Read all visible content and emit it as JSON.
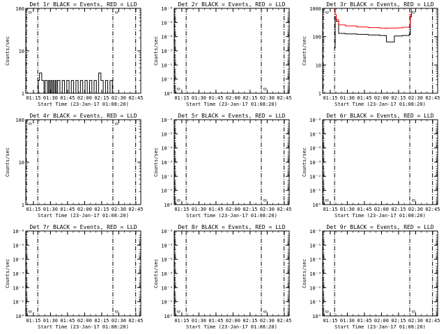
{
  "colors": {
    "events": "#000000",
    "lld": "#ff0000",
    "background": "#ffffff"
  },
  "shared": {
    "xlabel": "Start Time (23-Jan-17 01:08:20)",
    "ylabel": "Counts/sec",
    "x_ticks": [
      "01:15",
      "01:30",
      "01:45",
      "02:00",
      "02:15",
      "02:30",
      "02:45"
    ],
    "x_tick_minutes": [
      6.67,
      21.67,
      36.67,
      51.67,
      66.67,
      81.67,
      96.67
    ],
    "xlim_minutes": [
      0,
      101
    ],
    "marker_lines_minutes": [
      0.5,
      10.5,
      76.5,
      96.5
    ],
    "marker_text": "D",
    "marker_text_minutes": [
      0.6,
      76.6
    ]
  },
  "chart_data": [
    {
      "type": "line",
      "title": "Det 1r BLACK = Events, RED = LLD",
      "ylabel": "Counts/sec",
      "xlabel": "Start Time (23-Jan-17 01:08:20)",
      "scale": "log",
      "ylim": [
        1,
        100
      ],
      "y_ticks": [
        "1",
        "10",
        "100"
      ],
      "y_tick_values": [
        1,
        10,
        100
      ],
      "series": [
        {
          "color": "events",
          "x": [
            10,
            11,
            12,
            13,
            14,
            15,
            16,
            17,
            18,
            19,
            20,
            21,
            22,
            23,
            24,
            25,
            26,
            27,
            28,
            30,
            32,
            34,
            36,
            38,
            40,
            42,
            44,
            46,
            48,
            50,
            52,
            54,
            56,
            58,
            60,
            62,
            64,
            66,
            68,
            70,
            72,
            74,
            76
          ],
          "y": [
            1,
            2,
            3,
            3,
            2,
            2,
            1,
            2,
            2,
            1,
            2,
            1,
            2,
            1,
            2,
            1,
            2,
            1,
            2,
            1,
            2,
            1,
            2,
            1,
            2,
            1,
            2,
            1,
            2,
            1,
            2,
            1,
            2,
            1,
            2,
            1,
            3,
            2,
            1,
            2,
            1,
            2,
            1
          ]
        }
      ]
    },
    {
      "type": "line",
      "title": "Det 2r BLACK = Events, RED = LLD",
      "ylabel": "Counts/sec",
      "xlabel": "Start Time (23-Jan-17 01:08:20)",
      "scale": "log",
      "ylim": [
        1,
        1e-06
      ],
      "y_ticks": [
        "10⁻⁶",
        "10⁻⁵",
        "10⁻⁴",
        "10⁻³",
        "10⁻²",
        "10⁻¹",
        "10⁰"
      ],
      "y_tick_values": [
        1e-06,
        1e-05,
        0.0001,
        0.001,
        0.01,
        0.1,
        1
      ],
      "series": []
    },
    {
      "type": "line",
      "title": "Det 3r BLACK = Events, RED = LLD",
      "ylabel": "Counts/sec",
      "xlabel": "Start Time (23-Jan-17 01:08:20)",
      "scale": "log",
      "ylim": [
        1,
        1000
      ],
      "y_ticks": [
        "1",
        "10",
        "100",
        "1000"
      ],
      "y_tick_values": [
        1,
        10,
        100,
        1000
      ],
      "series": [
        {
          "color": "events",
          "x": [
            10,
            11,
            12,
            14,
            20,
            30,
            40,
            50,
            55,
            56,
            59,
            62,
            63,
            66,
            70,
            76,
            77,
            78
          ],
          "y": [
            40,
            500,
            350,
            130,
            125,
            120,
            115,
            110,
            108,
            65,
            65,
            65,
            105,
            105,
            110,
            120,
            500,
            900
          ]
        },
        {
          "color": "lld",
          "x": [
            10,
            11,
            12,
            14,
            20,
            30,
            40,
            50,
            55,
            56,
            59,
            62,
            63,
            66,
            70,
            76,
            77,
            78
          ],
          "y": [
            900,
            600,
            400,
            260,
            240,
            220,
            210,
            200,
            195,
            200,
            200,
            200,
            200,
            205,
            215,
            230,
            600,
            1000
          ]
        }
      ]
    },
    {
      "type": "line",
      "title": "Det 4r BLACK = Events, RED = LLD",
      "ylabel": "Counts/sec",
      "xlabel": "Start Time (23-Jan-17 01:08:20)",
      "scale": "log",
      "ylim": [
        1,
        100
      ],
      "y_ticks": [
        "1",
        "10",
        "100"
      ],
      "y_tick_values": [
        1,
        10,
        100
      ],
      "series": []
    },
    {
      "type": "line",
      "title": "Det 5r BLACK = Events, RED = LLD",
      "ylabel": "Counts/sec",
      "xlabel": "Start Time (23-Jan-17 01:08:20)",
      "scale": "log",
      "ylim": [
        1,
        1e-06
      ],
      "y_ticks": [
        "10⁻⁶",
        "10⁻⁵",
        "10⁻⁴",
        "10⁻³",
        "10⁻²",
        "10⁻¹",
        "10⁰"
      ],
      "y_tick_values": [
        1e-06,
        1e-05,
        0.0001,
        0.001,
        0.01,
        0.1,
        1
      ],
      "series": []
    },
    {
      "type": "line",
      "title": "Det 6r BLACK = Events, RED = LLD",
      "ylabel": "Counts/sec",
      "xlabel": "Start Time (23-Jan-17 01:08:20)",
      "scale": "log",
      "ylim": [
        1,
        1e-06
      ],
      "y_ticks": [
        "10⁻⁶",
        "10⁻⁵",
        "10⁻⁴",
        "10⁻³",
        "10⁻²",
        "10⁻¹",
        "10⁰"
      ],
      "y_tick_values": [
        1e-06,
        1e-05,
        0.0001,
        0.001,
        0.01,
        0.1,
        1
      ],
      "series": []
    },
    {
      "type": "line",
      "title": "Det 7r BLACK = Events, RED = LLD",
      "ylabel": "Counts/sec",
      "xlabel": "Start Time (23-Jan-17 01:08:20)",
      "scale": "log",
      "ylim": [
        1,
        1e-06
      ],
      "y_ticks": [
        "10⁻⁶",
        "10⁻⁵",
        "10⁻⁴",
        "10⁻³",
        "10⁻²",
        "10⁻¹",
        "10⁰"
      ],
      "y_tick_values": [
        1e-06,
        1e-05,
        0.0001,
        0.001,
        0.01,
        0.1,
        1
      ],
      "series": []
    },
    {
      "type": "line",
      "title": "Det 8r BLACK = Events, RED = LLD",
      "ylabel": "Counts/sec",
      "xlabel": "Start Time (23-Jan-17 01:08:20)",
      "scale": "log",
      "ylim": [
        1,
        1e-06
      ],
      "y_ticks": [
        "10⁻⁶",
        "10⁻⁵",
        "10⁻⁴",
        "10⁻³",
        "10⁻²",
        "10⁻¹",
        "10⁰"
      ],
      "y_tick_values": [
        1e-06,
        1e-05,
        0.0001,
        0.001,
        0.01,
        0.1,
        1
      ],
      "series": []
    },
    {
      "type": "line",
      "title": "Det 9r BLACK = Events, RED = LLD",
      "ylabel": "Counts/sec",
      "xlabel": "Start Time (23-Jan-17 01:08:20)",
      "scale": "log",
      "ylim": [
        1,
        1e-06
      ],
      "y_ticks": [
        "10⁻⁶",
        "10⁻⁵",
        "10⁻⁴",
        "10⁻³",
        "10⁻²",
        "10⁻¹",
        "10⁰"
      ],
      "y_tick_values": [
        1e-06,
        1e-05,
        0.0001,
        0.001,
        0.01,
        0.1,
        1
      ],
      "series": []
    }
  ]
}
